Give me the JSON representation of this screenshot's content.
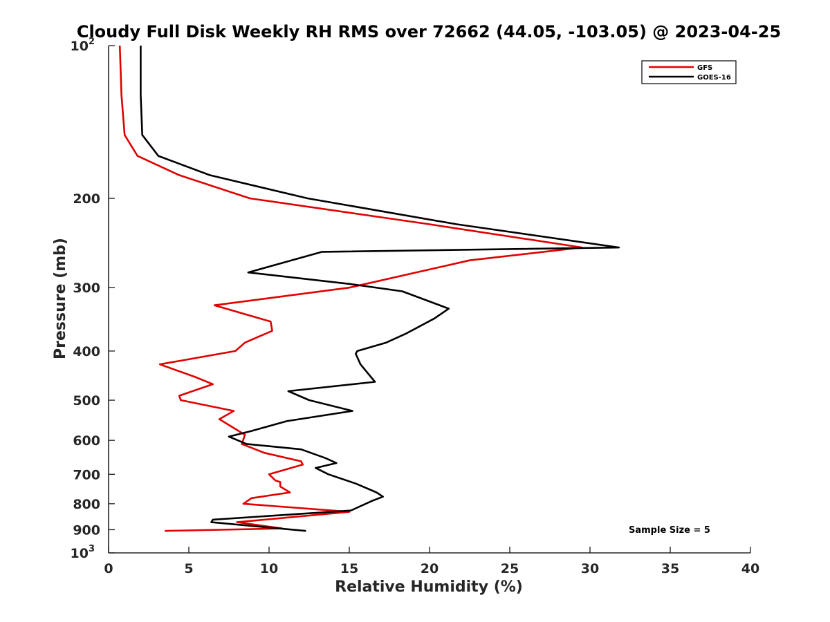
{
  "chart_data": {
    "type": "line",
    "title": "Cloudy Full Disk Weekly RH RMS over 72662 (44.05, -103.05) @ 2023-04-25",
    "xlabel": "Relative Humidity (%)",
    "ylabel": "Pressure (mb)",
    "xlim": [
      0,
      40
    ],
    "ylim": [
      100,
      1000
    ],
    "y_scale": "log",
    "y_reversed": true,
    "grid": false,
    "legend_position": "top-right",
    "x_ticks": [
      0,
      5,
      10,
      15,
      20,
      25,
      30,
      35,
      40
    ],
    "y_ticks": [
      {
        "value": 100,
        "label": "10",
        "sup": "2"
      },
      {
        "value": 200,
        "label": "200",
        "sup": ""
      },
      {
        "value": 300,
        "label": "300",
        "sup": ""
      },
      {
        "value": 400,
        "label": "400",
        "sup": ""
      },
      {
        "value": 500,
        "label": "500",
        "sup": ""
      },
      {
        "value": 600,
        "label": "600",
        "sup": ""
      },
      {
        "value": 700,
        "label": "700",
        "sup": ""
      },
      {
        "value": 800,
        "label": "800",
        "sup": ""
      },
      {
        "value": 900,
        "label": "900",
        "sup": ""
      },
      {
        "value": 1000,
        "label": "10",
        "sup": "3"
      }
    ],
    "annotation": "Sample Size = 5",
    "series": [
      {
        "name": "GFS",
        "color": "#e00000",
        "points": [
          [
            0.7,
            100
          ],
          [
            0.8,
            125
          ],
          [
            1.0,
            150
          ],
          [
            1.8,
            165
          ],
          [
            4.4,
            180
          ],
          [
            8.8,
            200
          ],
          [
            20.0,
            225
          ],
          [
            29.5,
            250
          ],
          [
            22.5,
            265
          ],
          [
            15.0,
            300
          ],
          [
            6.6,
            325
          ],
          [
            10.1,
            350
          ],
          [
            10.2,
            365
          ],
          [
            8.5,
            385
          ],
          [
            7.9,
            400
          ],
          [
            3.2,
            425
          ],
          [
            5.4,
            450
          ],
          [
            6.5,
            465
          ],
          [
            4.4,
            490
          ],
          [
            4.5,
            500
          ],
          [
            7.8,
            525
          ],
          [
            6.9,
            545
          ],
          [
            8.3,
            580
          ],
          [
            8.5,
            585
          ],
          [
            8.3,
            610
          ],
          [
            9.7,
            635
          ],
          [
            12.0,
            660
          ],
          [
            12.1,
            670
          ],
          [
            10.0,
            700
          ],
          [
            10.4,
            720
          ],
          [
            10.7,
            725
          ],
          [
            10.7,
            740
          ],
          [
            11.3,
            760
          ],
          [
            8.9,
            780
          ],
          [
            8.4,
            800
          ],
          [
            15.0,
            830
          ],
          [
            8.0,
            870
          ],
          [
            10.8,
            895
          ],
          [
            3.5,
            905
          ]
        ]
      },
      {
        "name": "GOES-16",
        "color": "#000000",
        "points": [
          [
            2.0,
            100
          ],
          [
            2.0,
            125
          ],
          [
            2.1,
            150
          ],
          [
            3.1,
            165
          ],
          [
            6.3,
            180
          ],
          [
            12.4,
            200
          ],
          [
            21.7,
            225
          ],
          [
            31.8,
            250
          ],
          [
            13.3,
            255
          ],
          [
            8.7,
            280
          ],
          [
            15.0,
            295
          ],
          [
            18.3,
            305
          ],
          [
            21.2,
            330
          ],
          [
            20.3,
            345
          ],
          [
            18.5,
            370
          ],
          [
            17.3,
            385
          ],
          [
            15.5,
            400
          ],
          [
            15.4,
            405
          ],
          [
            15.7,
            425
          ],
          [
            16.6,
            460
          ],
          [
            11.2,
            480
          ],
          [
            12.5,
            500
          ],
          [
            15.2,
            525
          ],
          [
            11.1,
            550
          ],
          [
            8.9,
            575
          ],
          [
            7.5,
            590
          ],
          [
            8.6,
            610
          ],
          [
            12.0,
            625
          ],
          [
            13.5,
            650
          ],
          [
            14.2,
            665
          ],
          [
            12.9,
            680
          ],
          [
            13.7,
            700
          ],
          [
            15.4,
            730
          ],
          [
            16.7,
            760
          ],
          [
            17.1,
            775
          ],
          [
            16.4,
            790
          ],
          [
            15.1,
            825
          ],
          [
            6.5,
            860
          ],
          [
            6.4,
            870
          ],
          [
            12.3,
            905
          ]
        ]
      }
    ]
  }
}
